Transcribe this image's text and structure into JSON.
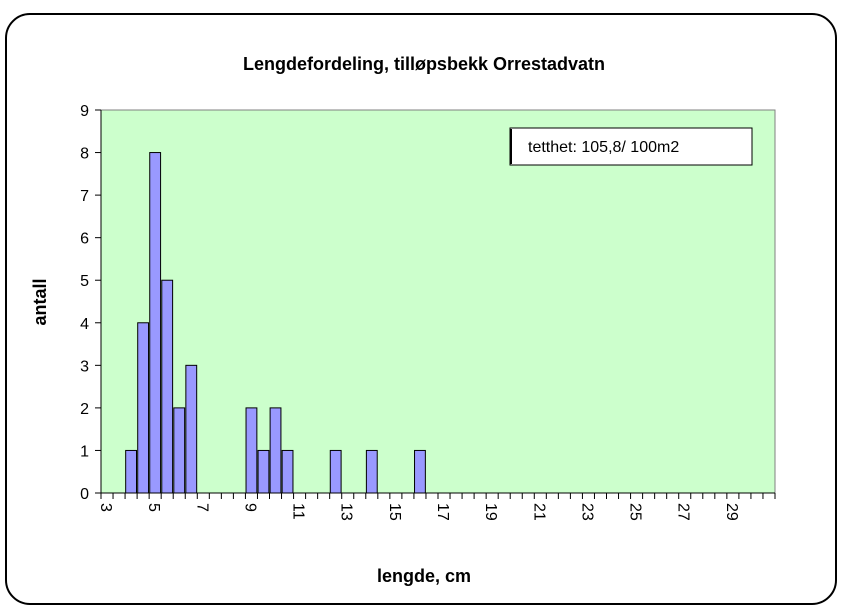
{
  "chart_data": {
    "type": "bar",
    "title": "Lengdefordeling, tilløpsbekk Orrestadvatn",
    "x_label": "lengde, cm",
    "y_label": "antall",
    "annotation": "tetthet: 105,8/ 100m2",
    "categories": [
      "3",
      null,
      null,
      null,
      "5",
      null,
      null,
      null,
      "7",
      null,
      null,
      null,
      "9",
      null,
      null,
      null,
      "11",
      null,
      null,
      null,
      "13",
      null,
      null,
      null,
      "15",
      null,
      null,
      null,
      "17",
      null,
      null,
      null,
      "19",
      null,
      null,
      null,
      "21",
      null,
      null,
      null,
      "23",
      null,
      null,
      null,
      "25",
      null,
      null,
      null,
      "27",
      null,
      null,
      null,
      "29",
      null,
      null,
      null
    ],
    "values": [
      0,
      0,
      1,
      4,
      8,
      5,
      2,
      3,
      0,
      0,
      0,
      0,
      2,
      1,
      2,
      1,
      0,
      0,
      0,
      1,
      0,
      0,
      1,
      0,
      0,
      0,
      1,
      0,
      0,
      0,
      0,
      0,
      0,
      0,
      0,
      0,
      0,
      0,
      0,
      0,
      0,
      0,
      0,
      0,
      0,
      0,
      0,
      0,
      0,
      0,
      0,
      0,
      0,
      0,
      0,
      0
    ],
    "color": "#9999ff",
    "plot_background": "#ccffcc",
    "ylim": [
      0,
      9
    ],
    "yticks": [
      0,
      1,
      2,
      3,
      4,
      5,
      6,
      7,
      8,
      9
    ]
  }
}
